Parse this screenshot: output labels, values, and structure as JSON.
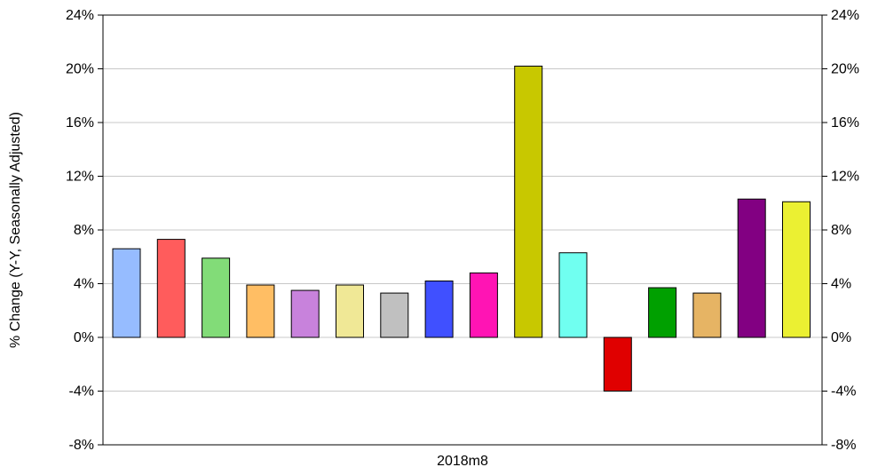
{
  "chart_data": {
    "type": "bar",
    "category": "2018m8",
    "values": [
      6.6,
      7.3,
      5.9,
      3.9,
      3.5,
      3.9,
      3.3,
      4.2,
      4.8,
      20.2,
      6.3,
      -4.0,
      3.7,
      3.3,
      10.3,
      10.1
    ],
    "colors": [
      "#96bcff",
      "#ff5c5c",
      "#82dc78",
      "#ffbe64",
      "#c882dc",
      "#f0e896",
      "#c0c0c0",
      "#4050ff",
      "#ff14b4",
      "#c8c800",
      "#70fff0",
      "#e00000",
      "#00a000",
      "#e6b464",
      "#820082",
      "#ebf032"
    ],
    "ylabel": "% Change (Y-Y, Seasonally Adjusted)",
    "ylim": [
      -8,
      24
    ],
    "yticks": [
      -8,
      -4,
      0,
      4,
      8,
      12,
      16,
      20,
      24
    ],
    "ytick_suffix": "%",
    "grid": true,
    "legend": "none"
  }
}
